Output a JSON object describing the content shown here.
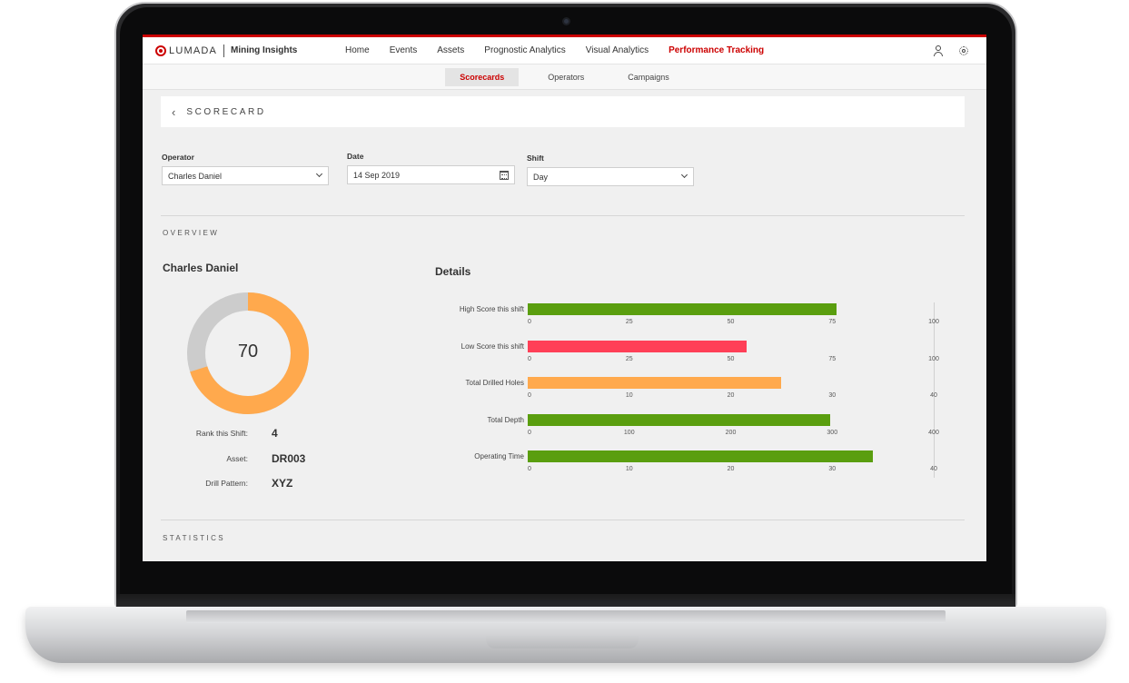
{
  "app": {
    "brand": "LUMADA",
    "product": "Mining Insights"
  },
  "nav": {
    "items": [
      "Home",
      "Events",
      "Assets",
      "Prognostic Analytics",
      "Visual Analytics",
      "Performance Tracking"
    ],
    "active": "Performance Tracking"
  },
  "subnav": {
    "items": [
      "Scorecards",
      "Operators",
      "Campaigns"
    ],
    "active": "Scorecards"
  },
  "page": {
    "title": "SCORECARD"
  },
  "filters": {
    "operator": {
      "label": "Operator",
      "value": "Charles Daniel"
    },
    "date": {
      "label": "Date",
      "value": "14 Sep 2019"
    },
    "shift": {
      "label": "Shift",
      "value": "Day"
    }
  },
  "overview": {
    "section_label": "OVERVIEW",
    "operator_name": "Charles Daniel",
    "score": "70",
    "score_fraction": 0.7,
    "rank_label": "Rank this Shift:",
    "rank_value": "4",
    "asset_label": "Asset:",
    "asset_value": "DR003",
    "pattern_label": "Drill Pattern:",
    "pattern_value": "XYZ"
  },
  "details": {
    "title": "Details"
  },
  "statistics": {
    "section_label": "STATISTICS"
  },
  "colors": {
    "accent": "#cc0000",
    "green": "#5a9e0f",
    "red": "#ff3f57",
    "orange": "#ffa94d",
    "donut_track": "#cccccc"
  },
  "chart_data": {
    "type": "bar",
    "orientation": "horizontal",
    "title": "Details",
    "rows": [
      {
        "label": "High Score this shift",
        "value": 76,
        "max": 100,
        "ticks": [
          "0",
          "25",
          "50",
          "75",
          "100"
        ],
        "color": "#5a9e0f"
      },
      {
        "label": "Low Score this shift",
        "value": 54,
        "max": 100,
        "ticks": [
          "0",
          "25",
          "50",
          "75",
          "100"
        ],
        "color": "#ff3f57"
      },
      {
        "label": "Total Drilled Holes",
        "value": 25,
        "max": 40,
        "ticks": [
          "0",
          "10",
          "20",
          "30",
          "40"
        ],
        "color": "#ffa94d"
      },
      {
        "label": "Total Depth",
        "value": 298,
        "max": 400,
        "ticks": [
          "0",
          "100",
          "200",
          "300",
          "400"
        ],
        "color": "#5a9e0f"
      },
      {
        "label": "Operating Time",
        "value": 34,
        "max": 40,
        "ticks": [
          "0",
          "10",
          "20",
          "30",
          "40"
        ],
        "color": "#5a9e0f"
      }
    ],
    "grid": false
  }
}
